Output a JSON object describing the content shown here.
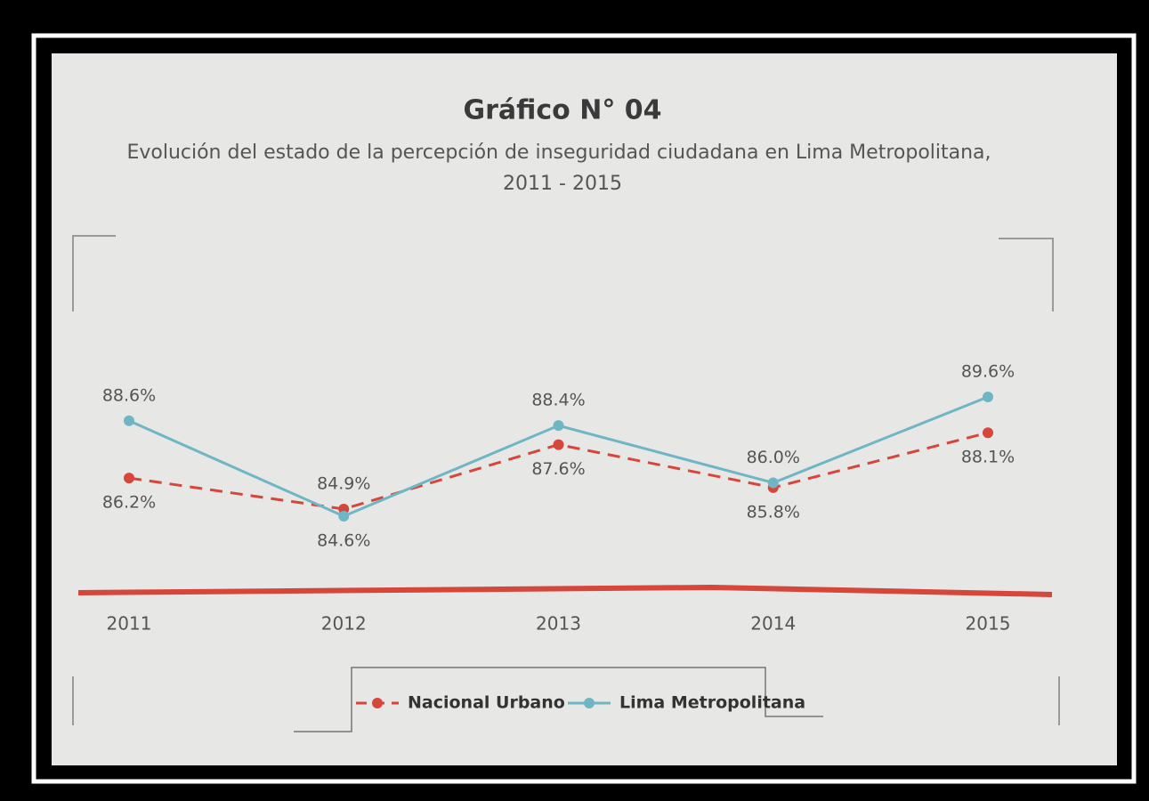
{
  "chart_data": {
    "type": "line",
    "title": "Gráfico N° 04",
    "subtitle": [
      "Evolución del estado de la percepción de inseguridad ciudadana en Lima Metropolitana,",
      "2011 - 2015"
    ],
    "categories": [
      "2011",
      "2012",
      "2013",
      "2014",
      "2015"
    ],
    "series": [
      {
        "name": "Nacional Urbano",
        "color": "#d6463a",
        "dashed": true,
        "values": [
          86.2,
          84.9,
          87.6,
          85.8,
          88.1
        ],
        "value_labels": [
          "86.2%",
          "84.9%",
          "87.6%",
          "85.8%",
          "88.1%"
        ]
      },
      {
        "name": "Lima Metropolitana",
        "color": "#6fb6c5",
        "dashed": false,
        "values": [
          88.6,
          84.6,
          88.4,
          86.0,
          89.6
        ],
        "value_labels": [
          "88.6%",
          "84.6%",
          "88.4%",
          "86.0%",
          "89.6%"
        ]
      }
    ]
  }
}
